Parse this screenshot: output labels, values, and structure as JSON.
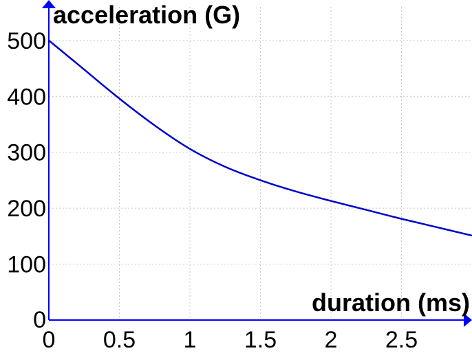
{
  "chart_data": {
    "type": "line",
    "xlabel": "duration (ms)",
    "ylabel": "acceleration (G)",
    "xlim": [
      0,
      3.0
    ],
    "ylim": [
      0,
      560
    ],
    "x_ticks": [
      {
        "value": 0,
        "label": "0"
      },
      {
        "value": 0.5,
        "label": "0.5"
      },
      {
        "value": 1,
        "label": "1"
      },
      {
        "value": 1.5,
        "label": "1.5"
      },
      {
        "value": 2,
        "label": "2"
      },
      {
        "value": 2.5,
        "label": "2.5"
      }
    ],
    "y_ticks": [
      {
        "value": 0,
        "label": "0"
      },
      {
        "value": 100,
        "label": "100"
      },
      {
        "value": 200,
        "label": "200"
      },
      {
        "value": 300,
        "label": "300"
      },
      {
        "value": 400,
        "label": "400"
      },
      {
        "value": 500,
        "label": "500"
      }
    ],
    "grid": true,
    "series": [
      {
        "color": "#0000cc",
        "x": [
          0,
          0.25,
          0.5,
          0.75,
          1.0,
          1.25,
          1.5,
          1.75,
          2.0,
          2.25,
          2.5,
          2.75,
          3.0
        ],
        "y": [
          500,
          448,
          396,
          348,
          306,
          274,
          250,
          230,
          213,
          197,
          181,
          166,
          151
        ]
      }
    ]
  }
}
